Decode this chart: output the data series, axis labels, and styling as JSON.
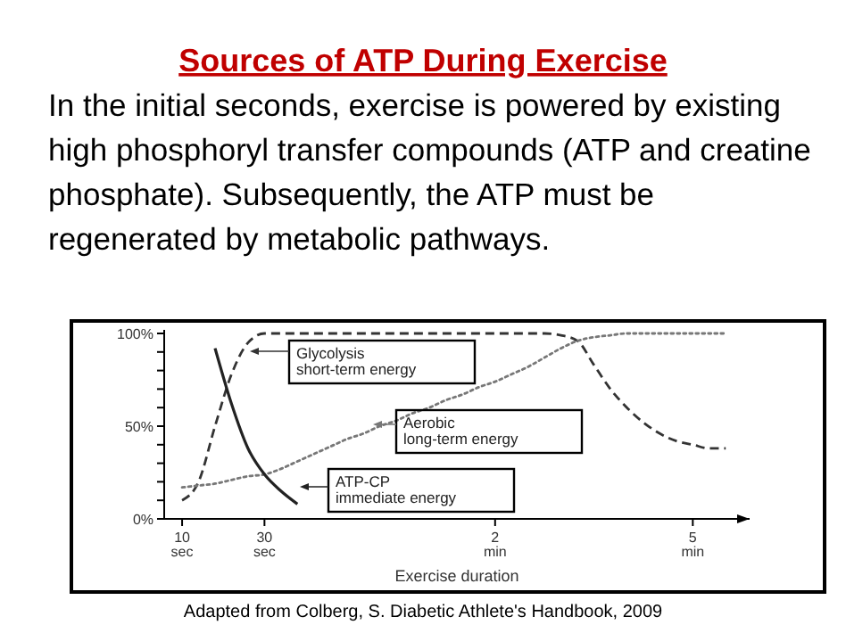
{
  "chart_data": {
    "type": "line",
    "title": "Sources of ATP During Exercise",
    "subtitle": "In the initial seconds, exercise is powered by existing\nhigh phosphoryl transfer compounds (ATP and creatine\nphosphate). Subsequently, the ATP must be\nregenerated by metabolic pathways.",
    "xlabel": "Exercise duration",
    "annotations": [
      "Adapted from Colberg, S. Diabetic Athlete's Handbook, 2009"
    ],
    "categories": [
      null,
      "10 sec",
      null,
      null,
      null,
      null,
      "30 sec",
      null,
      null,
      null,
      null,
      null,
      null,
      null,
      null,
      null,
      null,
      null,
      null,
      null,
      "2 min",
      null,
      null,
      null,
      null,
      null,
      null,
      null,
      null,
      null,
      null,
      null,
      "5 min",
      null,
      null,
      null
    ],
    "legend": "center",
    "ylim": [
      0,
      100
    ],
    "yticks": [
      {
        "value": 0,
        "label": "0%"
      },
      {
        "value": 10,
        "label": null
      },
      {
        "value": 20,
        "label": null
      },
      {
        "value": 30,
        "label": null
      },
      {
        "value": 40,
        "label": null
      },
      {
        "value": 50,
        "label": "50%"
      },
      {
        "value": 60,
        "label": null
      },
      {
        "value": 70,
        "label": null
      },
      {
        "value": 80,
        "label": null
      },
      {
        "value": 90,
        "label": null
      },
      {
        "value": 100,
        "label": "100%"
      }
    ],
    "series": [
      {
        "name": "Glycolysis\nshort-term energy",
        "color": "#333333",
        "line_style": "dashed",
        "values": [
          null,
          10,
          20,
          50,
          78,
          95,
          100,
          100,
          100,
          100,
          100,
          100,
          100,
          100,
          100,
          100,
          100,
          100,
          100,
          100,
          100,
          100,
          100,
          100,
          99,
          96,
          83,
          70,
          60,
          52,
          46,
          42,
          40,
          38,
          38,
          null
        ]
      },
      {
        "name": "Aerobic\nlong-term energy",
        "color": "#777777",
        "line_style": "dotted",
        "values": [
          null,
          17,
          18,
          19,
          21,
          23,
          24,
          27,
          31,
          35,
          39,
          43,
          46,
          50,
          53,
          57,
          60,
          64,
          67,
          71,
          74,
          78,
          82,
          87,
          92,
          96,
          98,
          99,
          100,
          100,
          100,
          100,
          100,
          100,
          100,
          null
        ]
      },
      {
        "name": "ATP-CP\nimmediate energy",
        "color": "#222222",
        "line_style": "solid",
        "values": [
          null,
          null,
          null,
          92,
          62,
          38,
          24,
          15,
          8,
          null,
          null,
          null,
          null,
          null,
          null,
          null,
          null,
          null,
          null,
          null,
          null,
          null,
          null,
          null,
          null,
          null,
          null,
          null,
          null,
          null,
          null,
          null,
          null,
          null,
          null,
          null
        ]
      }
    ]
  }
}
